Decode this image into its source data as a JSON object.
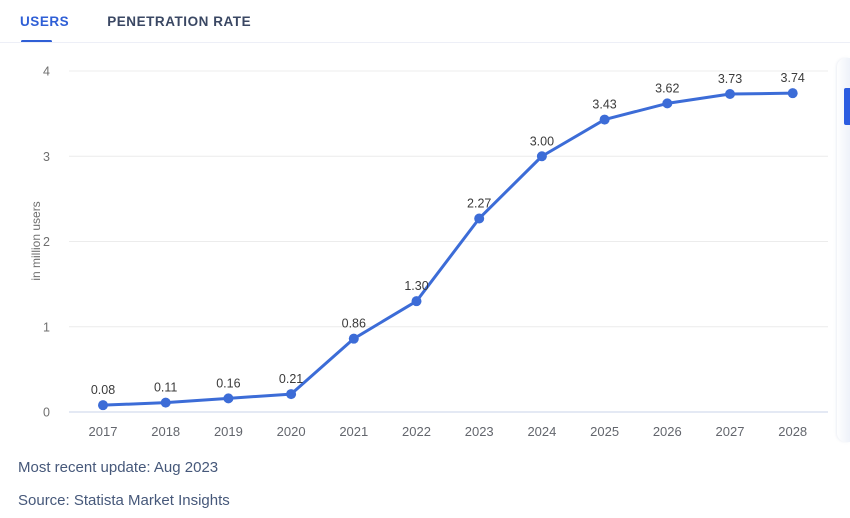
{
  "tabs": [
    {
      "label": "USERS",
      "active": true
    },
    {
      "label": "PENETRATION RATE",
      "active": false
    }
  ],
  "chart_data": {
    "type": "line",
    "title": "",
    "categories": [
      "2017",
      "2018",
      "2019",
      "2020",
      "2021",
      "2022",
      "2023",
      "2024",
      "2025",
      "2026",
      "2027",
      "2028"
    ],
    "values": [
      0.08,
      0.11,
      0.16,
      0.21,
      0.86,
      1.3,
      2.27,
      3.0,
      3.43,
      3.62,
      3.73,
      3.74
    ],
    "point_labels": [
      "0.08",
      "0.11",
      "0.16",
      "0.21",
      "0.86",
      "1.30",
      "2.27",
      "3.00",
      "3.43",
      "3.62",
      "3.73",
      "3.74"
    ],
    "xlabel": "",
    "ylabel": "in million users",
    "ylim": [
      0,
      4
    ],
    "yticks": [
      0,
      1,
      2,
      3,
      4
    ],
    "grid": true,
    "legend": "none",
    "series_name": "Users"
  },
  "footer": {
    "updated": "Most recent update: Aug 2023",
    "source": "Source: Statista Market Insights"
  },
  "colors": {
    "accent-blue": "#2f5fd6",
    "line-blue": "#3c6cd7",
    "tab-inactive": "#3a4763",
    "divider": "#edeff7",
    "gridline": "#ececec",
    "zero-line": "#dbe2f1",
    "axis-text": "#6f6f6f",
    "xtick-text": "#63666d",
    "point-label-text": "#3b3b3b",
    "footer-text": "#46587a",
    "peek-blue": "#2b5ce0",
    "peek-bg": "#eef2f9"
  }
}
